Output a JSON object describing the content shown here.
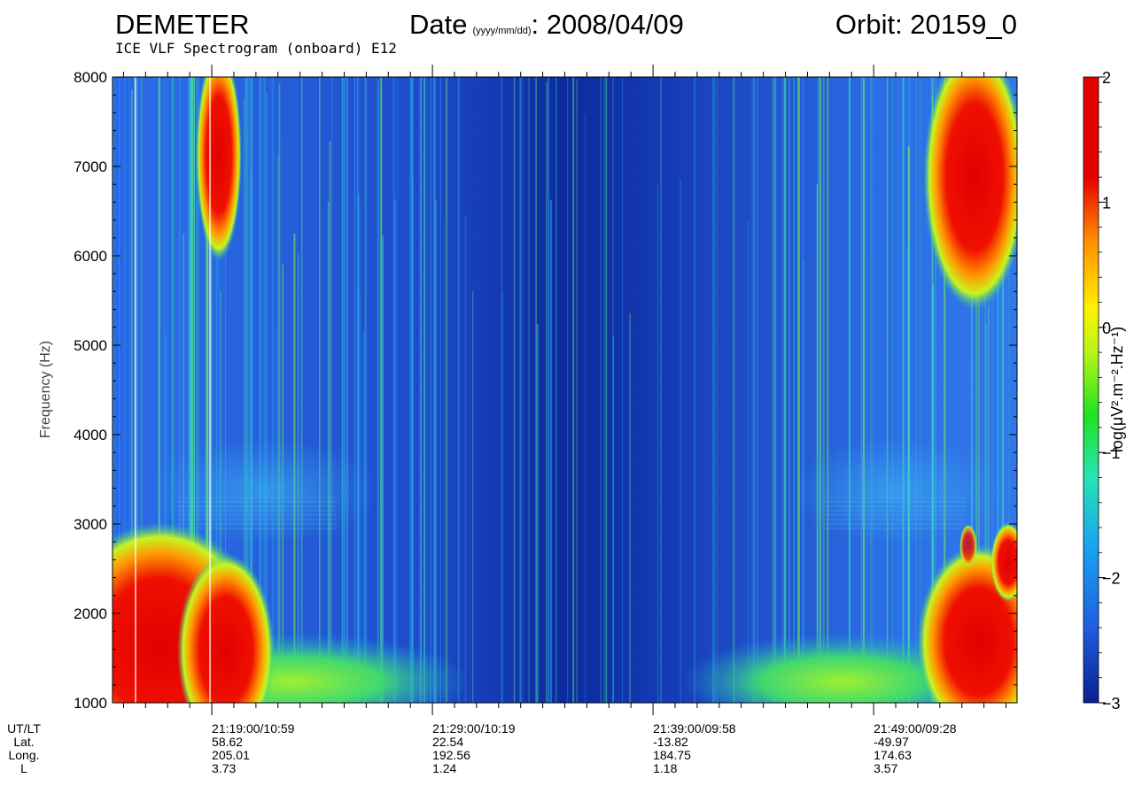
{
  "header": {
    "mission": "DEMETER",
    "date_label": "Date",
    "date_format": "(yyyy/mm/dd)",
    "date_value": ": 2008/04/09",
    "orbit": "Orbit: 20159_0",
    "subtitle": "ICE VLF Spectrogram (onboard) E12"
  },
  "chart_data": {
    "type": "heatmap",
    "ylabel": "Frequency (Hz)",
    "ylim": [
      1000,
      8000
    ],
    "yticks": [
      1000,
      2000,
      3000,
      4000,
      5000,
      6000,
      7000,
      8000
    ],
    "xlim_minutes": [
      21.0,
      103.0
    ],
    "x_axis_rows": [
      "UT/LT",
      "Lat.",
      "Long.",
      "L"
    ],
    "x_ticks": [
      {
        "ut_lt": "21:19:00/10:59",
        "lat": "58.62",
        "long": "205.01",
        "l": "3.73",
        "minute": 30
      },
      {
        "ut_lt": "21:29:00/10:19",
        "lat": "22.54",
        "long": "192.56",
        "l": "1.24",
        "minute": 50
      },
      {
        "ut_lt": "21:39:00/09:58",
        "lat": "-13.82",
        "long": "184.75",
        "l": "1.18",
        "minute": 70
      },
      {
        "ut_lt": "21:49:00/09:28",
        "lat": "-49.97",
        "long": "174.63",
        "l": "3.57",
        "minute": 90
      }
    ],
    "colorbar": {
      "label": "log(μV².m⁻².Hz⁻¹)",
      "range": [
        -3,
        2
      ],
      "ticks": [
        {
          "value": 2,
          "label": "2"
        },
        {
          "value": 1,
          "label": "1"
        },
        {
          "value": 0,
          "label": "0"
        },
        {
          "value": -1,
          "label": "−1"
        },
        {
          "value": -2,
          "label": "−2"
        },
        {
          "value": -3,
          "label": "−3"
        }
      ],
      "colors": [
        "#0a1f8f",
        "#1f5ee0",
        "#1aa3f0",
        "#26e3b5",
        "#1fe21f",
        "#b8f51a",
        "#fff200",
        "#ff8c00",
        "#e60000"
      ]
    }
  }
}
